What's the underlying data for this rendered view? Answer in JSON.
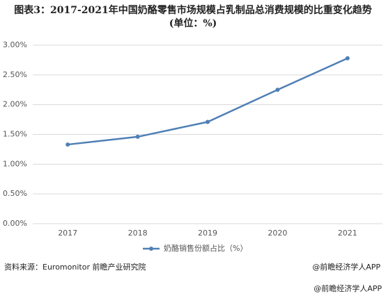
{
  "chart_data": {
    "type": "line",
    "title": "图表3：2017-2021年中国奶酪零售市场规模占乳制品总消费规模的比重变化趋势(单位：%)",
    "categories": [
      "2017",
      "2018",
      "2019",
      "2020",
      "2021"
    ],
    "series": [
      {
        "name": "奶酪销售份额占比（%）",
        "color": "#4f7fb5",
        "values": [
          1.33,
          1.46,
          1.71,
          2.25,
          2.78
        ]
      }
    ],
    "ylim": [
      0,
      3
    ],
    "yticks": [
      {
        "value": 0,
        "label": "0.00%"
      },
      {
        "value": 0.5,
        "label": "0.50%"
      },
      {
        "value": 1,
        "label": "1.00%"
      },
      {
        "value": 1.5,
        "label": "1.50%"
      },
      {
        "value": 2,
        "label": "2.00%"
      },
      {
        "value": 2.5,
        "label": "2.50%"
      },
      {
        "value": 3,
        "label": "3.00%"
      }
    ],
    "grid": true,
    "legend": "bottom",
    "source": "资料来源：Euromonitor 前瞻产业研究院",
    "credit": "@前瞻经济学人APP",
    "footer": "@前瞻经济学人APP"
  }
}
